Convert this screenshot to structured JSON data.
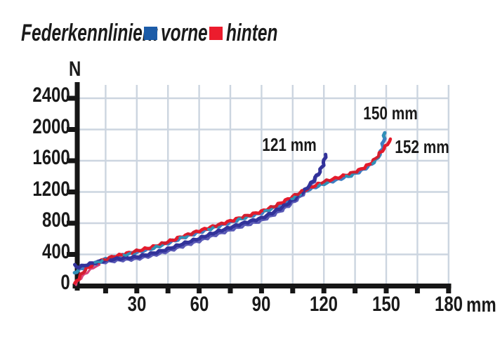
{
  "legend": {
    "title": "Federkennlinien:",
    "items": [
      {
        "label": "vorne",
        "color": "#1c5ca8"
      },
      {
        "label": "hinten",
        "color": "#ec1c2d"
      }
    ]
  },
  "chart_data": {
    "type": "line",
    "title": "Federkennlinien",
    "xlabel": "mm",
    "ylabel": "N",
    "xlim": [
      0,
      180
    ],
    "ylim": [
      0,
      2560
    ],
    "grid": "on",
    "grid_color": "#ccd5e0",
    "axis_color": "#161616",
    "x_tick_step_minor": 15,
    "x_ticks_labeled": [
      30,
      60,
      90,
      120,
      150,
      180
    ],
    "y_ticks": [
      0,
      400,
      800,
      1200,
      1600,
      2000,
      2400
    ],
    "annotations": [
      {
        "text": "121 mm",
        "x": 412,
        "y": 206
      },
      {
        "text": "150 mm",
        "x": 556,
        "y": 161
      },
      {
        "text": "152 mm",
        "x": 601,
        "y": 209
      }
    ],
    "series": [
      {
        "name": "vorne-1",
        "color": "#32329a",
        "points": [
          [
            0,
            258
          ],
          [
            2,
            236
          ],
          [
            5,
            262
          ],
          [
            10,
            296
          ],
          [
            15,
            326
          ],
          [
            22,
            348
          ],
          [
            30,
            368
          ],
          [
            38,
            415
          ],
          [
            45,
            470
          ],
          [
            52,
            535
          ],
          [
            60,
            605
          ],
          [
            68,
            685
          ],
          [
            75,
            745
          ],
          [
            82,
            805
          ],
          [
            90,
            865
          ],
          [
            95,
            930
          ],
          [
            100,
            1005
          ],
          [
            104,
            1075
          ],
          [
            108,
            1155
          ],
          [
            111,
            1225
          ],
          [
            114,
            1315
          ],
          [
            116,
            1385
          ],
          [
            118,
            1460
          ],
          [
            119.5,
            1545
          ],
          [
            120.3,
            1610
          ],
          [
            120.8,
            1680
          ]
        ]
      },
      {
        "name": "vorne-1b",
        "color": "#5a5ab6",
        "points": [
          [
            2,
            232
          ],
          [
            8,
            270
          ],
          [
            15,
            300
          ],
          [
            22,
            322
          ],
          [
            30,
            338
          ],
          [
            38,
            385
          ],
          [
            45,
            438
          ],
          [
            52,
            500
          ],
          [
            60,
            568
          ],
          [
            68,
            648
          ],
          [
            75,
            708
          ],
          [
            82,
            768
          ],
          [
            90,
            828
          ],
          [
            95,
            892
          ],
          [
            100,
            965
          ],
          [
            104,
            1038
          ],
          [
            108,
            1118
          ],
          [
            111,
            1192
          ],
          [
            114,
            1285
          ],
          [
            116,
            1360
          ],
          [
            118,
            1450
          ]
        ]
      },
      {
        "name": "vorne-2",
        "color": "#3e7ec2",
        "points": [
          [
            0,
            168
          ],
          [
            3,
            212
          ],
          [
            6,
            248
          ],
          [
            10,
            288
          ],
          [
            15,
            338
          ],
          [
            22,
            382
          ],
          [
            30,
            428
          ],
          [
            38,
            482
          ],
          [
            45,
            548
          ],
          [
            52,
            616
          ],
          [
            60,
            686
          ],
          [
            68,
            752
          ],
          [
            75,
            812
          ],
          [
            82,
            872
          ],
          [
            90,
            934
          ],
          [
            97,
            1010
          ],
          [
            105,
            1124
          ],
          [
            112,
            1224
          ],
          [
            120,
            1306
          ],
          [
            127,
            1364
          ],
          [
            133,
            1414
          ],
          [
            138,
            1472
          ],
          [
            142,
            1540
          ],
          [
            145,
            1608
          ],
          [
            147,
            1680
          ],
          [
            148,
            1756
          ],
          [
            148.7,
            1845
          ],
          [
            149.3,
            1958
          ]
        ]
      },
      {
        "name": "hinten",
        "color": "#e41b2c",
        "points": [
          [
            0.4,
            28
          ],
          [
            1.2,
            58
          ],
          [
            2.5,
            112
          ],
          [
            4,
            168
          ],
          [
            6,
            222
          ],
          [
            9,
            272
          ],
          [
            13,
            320
          ],
          [
            18,
            366
          ],
          [
            24,
            404
          ],
          [
            30,
            444
          ],
          [
            38,
            498
          ],
          [
            45,
            562
          ],
          [
            52,
            630
          ],
          [
            60,
            702
          ],
          [
            68,
            768
          ],
          [
            75,
            828
          ],
          [
            82,
            888
          ],
          [
            90,
            950
          ],
          [
            97,
            1026
          ],
          [
            105,
            1140
          ],
          [
            112,
            1240
          ],
          [
            120,
            1330
          ],
          [
            127,
            1386
          ],
          [
            133,
            1436
          ],
          [
            138,
            1492
          ],
          [
            142,
            1558
          ],
          [
            145,
            1625
          ],
          [
            147,
            1695
          ],
          [
            149,
            1758
          ],
          [
            150.5,
            1808
          ],
          [
            151.5,
            1848
          ],
          [
            152,
            1878
          ]
        ]
      },
      {
        "name": "hinten-b",
        "color": "#d8467d",
        "points": [
          [
            0.5,
            16
          ],
          [
            3,
            96
          ],
          [
            6,
            170
          ],
          [
            9,
            228
          ],
          [
            12,
            268
          ]
        ]
      }
    ]
  }
}
